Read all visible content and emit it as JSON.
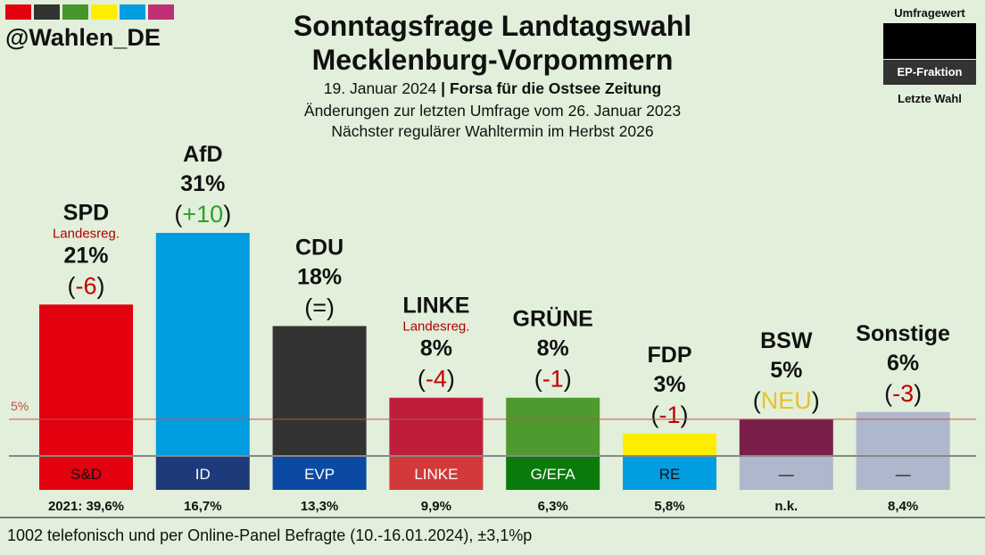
{
  "header": {
    "handle": "@Wahlen_DE",
    "title_line1": "Sonntagsfrage Landtagswahl",
    "title_line2": "Mecklenburg-Vorpommern",
    "date": "19. Januar 2024",
    "separator": "|",
    "institute": "Forsa für die Ostsee Zeitung",
    "change_note": "Änderungen zur letzten Umfrage vom 26. Januar 2023",
    "next_election": "Nächster regulärer Wahltermin im Herbst 2026",
    "stripe_colors": [
      "#e3000f",
      "#333333",
      "#46962b",
      "#ffed00",
      "#009ee0",
      "#be3075"
    ]
  },
  "legend": {
    "top_label": "Umfragewert",
    "middle_label": "EP-Fraktion",
    "bottom_label": "Letzte Wahl"
  },
  "chart_data": {
    "type": "bar",
    "title": "Sonntagsfrage Landtagswahl Mecklenburg-Vorpommern",
    "ylim": [
      0,
      31
    ],
    "threshold": {
      "value": 5,
      "label": "5%"
    },
    "categories": [
      "SPD",
      "AfD",
      "CDU",
      "LINKE",
      "GRÜNE",
      "FDP",
      "BSW",
      "Sonstige"
    ],
    "values": [
      21,
      31,
      18,
      8,
      8,
      3,
      5,
      6
    ],
    "value_labels": [
      "21%",
      "31%",
      "18%",
      "8%",
      "8%",
      "3%",
      "5%",
      "6%"
    ],
    "changes": [
      "-6",
      "+10",
      "=",
      "-4",
      "-1",
      "-1",
      "NEU",
      "-3"
    ],
    "change_colors": [
      "#c00000",
      "#2ca02c",
      "#111111",
      "#c00000",
      "#c00000",
      "#c00000",
      "#e8c227",
      "#c00000"
    ],
    "notes": [
      "Landesreg.",
      "",
      "",
      "Landesreg.",
      "",
      "",
      "",
      ""
    ],
    "bar_colors": [
      "#e3000f",
      "#009ee0",
      "#333333",
      "#be1e3c",
      "#4f9a2f",
      "#ffed00",
      "#7a1f4a",
      "#aeb8cc"
    ],
    "ep_groups": [
      "S&D",
      "ID",
      "EVP",
      "LINKE",
      "G/EFA",
      "RE",
      "—",
      "—"
    ],
    "ep_colors": [
      "#e3000f",
      "#1f3a7a",
      "#0b4aa3",
      "#d23a3a",
      "#0a7a0a",
      "#009ee0",
      "#aeb8cc",
      "#aeb8cc"
    ],
    "ep_text_colors": [
      "#111111",
      "#ffffff",
      "#ffffff",
      "#ffffff",
      "#ffffff",
      "#111111",
      "#111111",
      "#111111"
    ],
    "last_election": [
      "2021: 39,6%",
      "16,7%",
      "13,3%",
      "9,9%",
      "6,3%",
      "5,8%",
      "n.k.",
      "8,4%"
    ]
  },
  "footer": {
    "method": "1002 telefonisch und per Online-Panel Befragte (10.-16.01.2024), ±3,1%p"
  }
}
